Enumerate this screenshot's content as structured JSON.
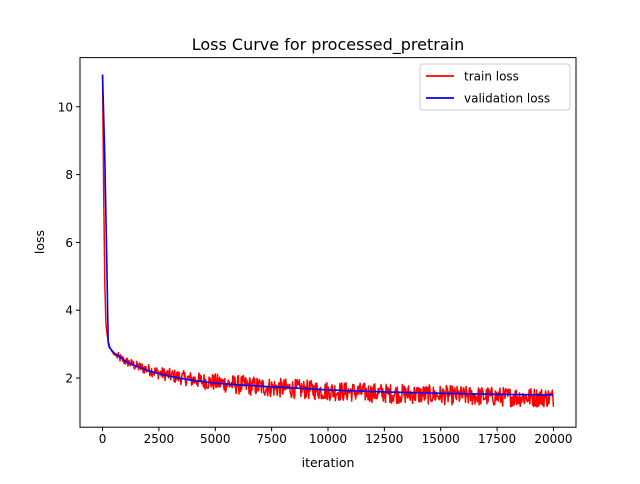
{
  "chart_data": {
    "type": "line",
    "title": "Loss Curve for processed_pretrain",
    "xlabel": "iteration",
    "ylabel": "loss",
    "xlim": [
      -1000,
      21000
    ],
    "ylim": [
      0.55,
      11.45
    ],
    "xticks": [
      0,
      2500,
      5000,
      7500,
      10000,
      12500,
      15000,
      17500,
      20000
    ],
    "yticks": [
      2,
      4,
      6,
      8,
      10
    ],
    "grid": false,
    "legend": "upper right",
    "series": [
      {
        "name": "train loss",
        "color": "#ff0000",
        "noisy": true,
        "x": [
          0,
          50,
          100,
          150,
          200,
          250,
          300,
          400,
          500,
          750,
          1000,
          1500,
          2000,
          2500,
          3000,
          4000,
          5000,
          6000,
          7500,
          9000,
          10000,
          12500,
          15000,
          17500,
          20000
        ],
        "y": [
          10.9,
          7.5,
          4.8,
          3.6,
          3.3,
          3.1,
          2.95,
          2.8,
          2.7,
          2.6,
          2.5,
          2.35,
          2.25,
          2.15,
          2.08,
          1.95,
          1.87,
          1.8,
          1.72,
          1.66,
          1.62,
          1.55,
          1.5,
          1.45,
          1.42
        ]
      },
      {
        "name": "validation loss",
        "color": "#0000ff",
        "noisy": false,
        "x": [
          0,
          100,
          200,
          250,
          300,
          500,
          1000,
          1500,
          2000,
          2500,
          3000,
          4000,
          5000,
          6000,
          7500,
          9000,
          10000,
          12500,
          15000,
          17500,
          20000
        ],
        "y": [
          10.95,
          8.5,
          5.0,
          3.05,
          2.9,
          2.75,
          2.5,
          2.35,
          2.22,
          2.13,
          2.05,
          1.93,
          1.85,
          1.8,
          1.74,
          1.69,
          1.65,
          1.59,
          1.55,
          1.52,
          1.5
        ]
      }
    ]
  }
}
